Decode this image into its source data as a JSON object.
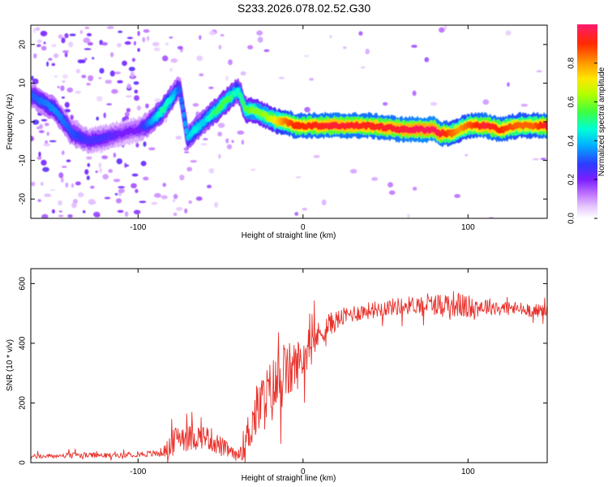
{
  "title": "S233.2026.078.02.52.G30",
  "chart_data": [
    {
      "type": "heatmap",
      "id": "spectrogram",
      "xlabel": "Height of straight line (km)",
      "ylabel": "Frequency (Hz)",
      "xlim": [
        -165,
        148
      ],
      "ylim": [
        -25,
        25
      ],
      "xticks": [
        -100,
        0,
        100
      ],
      "xtick_labels": [
        "-100",
        "0",
        "100"
      ],
      "yticks": [
        -20,
        -10,
        0,
        10,
        20
      ],
      "ytick_labels": [
        "-20",
        "-10",
        "0",
        "10",
        "20"
      ],
      "colorbar": {
        "label": "Normalized spectral amplitude",
        "range": [
          0,
          1
        ],
        "ticks": [
          0.0,
          0.2,
          0.4,
          0.6,
          0.8
        ],
        "tick_labels": [
          "0.0",
          "0.2",
          "0.4",
          "0.6",
          "0.8"
        ]
      },
      "ridge": {
        "x": [
          -165,
          -150,
          -140,
          -130,
          -120,
          -110,
          -100,
          -95,
          -90,
          -85,
          -80,
          -75,
          -70,
          -65,
          -60,
          -55,
          -50,
          -45,
          -40,
          -38,
          -35,
          -30,
          -25,
          -20,
          -15,
          -10,
          -5,
          0,
          20,
          40,
          60,
          70,
          80,
          82,
          90,
          95,
          100,
          110,
          120,
          130,
          140,
          148
        ],
        "y": [
          7,
          3,
          -3,
          -5,
          -4,
          -3,
          -2,
          -1,
          1,
          3,
          6,
          9,
          -4,
          -2,
          0,
          2,
          4,
          6,
          8,
          7,
          3,
          3,
          2,
          1,
          0,
          0,
          -1,
          -1,
          -1,
          -1,
          -2,
          -2,
          -2,
          -3,
          -3,
          -2,
          -1,
          -1,
          -2,
          -1,
          -1,
          -1
        ],
        "peak_amplitude": [
          0.3,
          0.35,
          0.3,
          0.25,
          0.25,
          0.2,
          0.2,
          0.3,
          0.4,
          0.5,
          0.45,
          0.3,
          0.4,
          0.45,
          0.4,
          0.5,
          0.55,
          0.55,
          0.45,
          0.5,
          0.55,
          0.6,
          0.6,
          0.65,
          0.75,
          0.85,
          0.9,
          0.9,
          0.95,
          0.92,
          0.95,
          0.98,
          0.98,
          0.97,
          0.85,
          0.8,
          0.85,
          0.95,
          0.9,
          0.85,
          0.85,
          0.95
        ]
      }
    },
    {
      "type": "line",
      "id": "snr",
      "xlabel": "Height of straight line (km)",
      "ylabel": "SNR (10 * v/v)",
      "xlim": [
        -165,
        148
      ],
      "ylim": [
        0,
        650
      ],
      "xticks": [
        -100,
        0,
        100
      ],
      "xtick_labels": [
        "-100",
        "0",
        "100"
      ],
      "yticks": [
        0,
        200,
        400,
        600
      ],
      "ytick_labels": [
        "0",
        "200",
        "400",
        "600"
      ],
      "series": [
        {
          "name": "SNR",
          "color": "#e8312b",
          "x": [
            -165,
            -150,
            -140,
            -130,
            -120,
            -110,
            -100,
            -90,
            -85,
            -80,
            -75,
            -70,
            -65,
            -60,
            -55,
            -50,
            -45,
            -40,
            -35,
            -30,
            -25,
            -20,
            -15,
            -10,
            -5,
            0,
            5,
            10,
            15,
            20,
            25,
            30,
            40,
            50,
            60,
            70,
            80,
            90,
            100,
            110,
            120,
            130,
            140,
            148
          ],
          "y": [
            20,
            22,
            25,
            25,
            24,
            25,
            28,
            30,
            35,
            55,
            95,
            80,
            85,
            90,
            75,
            55,
            40,
            20,
            70,
            150,
            200,
            230,
            270,
            300,
            320,
            350,
            400,
            430,
            460,
            475,
            490,
            500,
            510,
            520,
            525,
            530,
            530,
            535,
            520,
            525,
            520,
            515,
            510,
            510
          ],
          "noise": [
            8,
            8,
            9,
            9,
            8,
            8,
            9,
            12,
            15,
            40,
            50,
            45,
            45,
            40,
            40,
            35,
            25,
            15,
            60,
            90,
            100,
            110,
            110,
            100,
            90,
            70,
            55,
            45,
            40,
            35,
            30,
            30,
            28,
            28,
            30,
            30,
            35,
            45,
            40,
            30,
            25,
            25,
            22,
            20
          ]
        }
      ]
    }
  ]
}
